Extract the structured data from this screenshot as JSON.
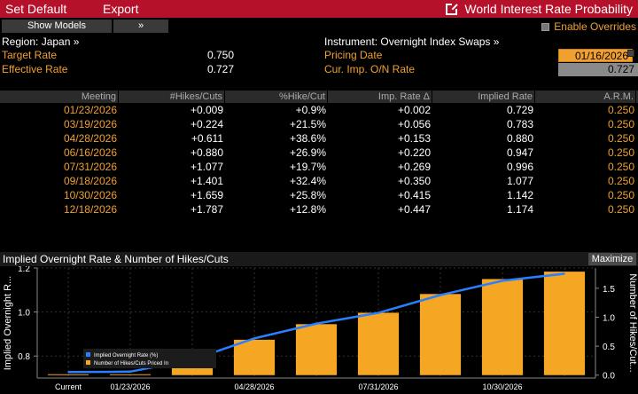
{
  "toolbar": {
    "set_default": "Set Default",
    "export": "Export",
    "title": "World Interest Rate Probability"
  },
  "controls": {
    "show_models": "Show Models",
    "arrows": "»",
    "enable_overrides": "Enable Overrides"
  },
  "left_info": {
    "region_label": "Region: Japan »",
    "target_rate_label": "Target Rate",
    "target_rate_value": "0.750",
    "effective_rate_label": "Effective Rate",
    "effective_rate_value": "0.727"
  },
  "right_info": {
    "instrument_label": "Instrument: Overnight Index Swaps »",
    "pricing_date_label": "Pricing Date",
    "pricing_date_value": "01/16/2026",
    "cur_imp_label": "Cur. Imp. O/N Rate",
    "cur_imp_value": "0.727"
  },
  "table": {
    "headers": [
      "Meeting",
      "#Hikes/Cuts",
      "%Hike/Cut",
      "Imp. Rate Δ",
      "Implied Rate",
      "A.R.M."
    ],
    "rows": [
      [
        "01/23/2026",
        "+0.009",
        "+0.9%",
        "+0.002",
        "0.729",
        "0.250"
      ],
      [
        "03/19/2026",
        "+0.224",
        "+21.5%",
        "+0.056",
        "0.783",
        "0.250"
      ],
      [
        "04/28/2026",
        "+0.611",
        "+38.6%",
        "+0.153",
        "0.880",
        "0.250"
      ],
      [
        "06/16/2026",
        "+0.880",
        "+26.9%",
        "+0.220",
        "0.947",
        "0.250"
      ],
      [
        "07/31/2026",
        "+1.077",
        "+19.7%",
        "+0.269",
        "0.996",
        "0.250"
      ],
      [
        "09/18/2026",
        "+1.401",
        "+32.4%",
        "+0.350",
        "1.077",
        "0.250"
      ],
      [
        "10/30/2026",
        "+1.659",
        "+25.8%",
        "+0.415",
        "1.142",
        "0.250"
      ],
      [
        "12/18/2026",
        "+1.787",
        "+12.8%",
        "+0.447",
        "1.174",
        "0.250"
      ]
    ]
  },
  "chart_header": {
    "title": "Implied Overnight Rate & Number of Hikes/Cuts",
    "maximize": "Maximize"
  },
  "chart_data": {
    "type": "bar",
    "categories": [
      "Current",
      "01/23/2026",
      "03/19/2026",
      "04/28/2026",
      "06/16/2026",
      "07/31/2026",
      "09/18/2026",
      "10/30/2026",
      "12/18/2026"
    ],
    "x_tick_labels": [
      "Current",
      "01/23/2026",
      "04/28/2026",
      "07/31/2026",
      "10/30/2026"
    ],
    "series": [
      {
        "name": "Implied Overnight Rate (%)",
        "type": "line",
        "axis": "left",
        "color": "#2a7fff",
        "values": [
          0.727,
          0.729,
          0.783,
          0.88,
          0.947,
          0.996,
          1.077,
          1.142,
          1.174
        ]
      },
      {
        "name": "Number of Hikes/Cuts Priced In",
        "type": "bar",
        "axis": "right",
        "color": "#f5a623",
        "values": [
          0,
          0.009,
          0.224,
          0.611,
          0.88,
          1.077,
          1.401,
          1.659,
          1.787
        ]
      }
    ],
    "ylabel": "Implied Overnight R...",
    "ylabel_right": "Number of Hikes/Cut...",
    "ylim": [
      0.7,
      1.2
    ],
    "ylim_right": [
      -0.05,
      1.85
    ],
    "yticks": [
      "0.8",
      "1.0",
      "1.2"
    ],
    "yticks_right": [
      "0.0",
      "0.5",
      "1.0",
      "1.5"
    ],
    "legend_position": "bottom-left",
    "grid": true
  },
  "colors": {
    "accent_red": "#b5112a",
    "orange": "#f0a030",
    "bar": "#f5a623",
    "line": "#2a7fff"
  }
}
